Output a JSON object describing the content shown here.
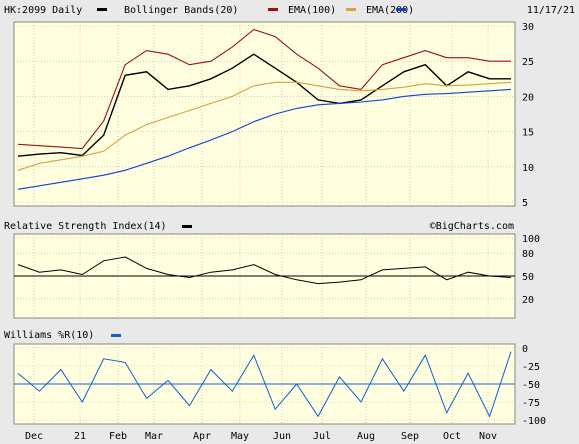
{
  "header": {
    "symbol": "HK:2099 Daily",
    "bollinger": "Bollinger Bands(20)",
    "ema100": "EMA(100)",
    "ema200": "EMA(200)",
    "date": "11/17/21"
  },
  "rsi_panel": {
    "title": "Relative Strength Index(14)"
  },
  "wr_panel": {
    "title": "Williams %R(10)"
  },
  "watermark": "©BigCharts.com",
  "colors": {
    "background": "#ffffe0",
    "price": "#000000",
    "bollinger": "#a01010",
    "ema100": "#d8a040",
    "ema200": "#1040d0",
    "rsi": "#000000",
    "williams": "#1060d0",
    "grid": "#b0b0b0"
  },
  "chart_data": [
    {
      "type": "line",
      "panel": "price",
      "title": "HK:2099 Daily",
      "ylim": [
        5,
        30
      ],
      "yticks": [
        5,
        10,
        15,
        20,
        25,
        30
      ],
      "xlabels": [
        "Dec",
        "21",
        "Feb",
        "Mar",
        "Apr",
        "May",
        "Jun",
        "Jul",
        "Aug",
        "Sep",
        "Oct",
        "Nov"
      ],
      "x": [
        "Dec 01",
        "Dec 15",
        "Jan 01",
        "Jan 15",
        "Feb 01",
        "Feb 15",
        "Mar 01",
        "Mar 15",
        "Apr 01",
        "Apr 15",
        "May 01",
        "May 15",
        "Jun 01",
        "Jun 15",
        "Jul 01",
        "Jul 15",
        "Aug 01",
        "Aug 15",
        "Sep 01",
        "Sep 15",
        "Oct 01",
        "Oct 15",
        "Nov 01",
        "Nov 17"
      ],
      "series": [
        {
          "name": "HK:2099 Daily",
          "values": [
            11.5,
            11.8,
            12.0,
            11.6,
            14.5,
            23.0,
            23.5,
            21.0,
            21.5,
            22.5,
            24.0,
            26.0,
            24.0,
            22.0,
            19.5,
            19.0,
            19.5,
            21.5,
            23.5,
            24.5,
            21.5,
            23.5,
            22.5,
            22.5
          ]
        },
        {
          "name": "Bollinger Bands(20)",
          "values": [
            13.2,
            13.0,
            12.8,
            12.6,
            16.5,
            24.5,
            26.5,
            26.0,
            24.5,
            25.0,
            27.0,
            29.5,
            28.5,
            26.0,
            24.0,
            21.5,
            21.0,
            24.5,
            25.5,
            26.5,
            25.5,
            25.5,
            25.0,
            25.0
          ]
        },
        {
          "name": "EMA(100)",
          "values": [
            9.5,
            10.5,
            11.0,
            11.5,
            12.2,
            14.5,
            16.0,
            17.0,
            18.0,
            19.0,
            20.0,
            21.5,
            22.0,
            22.0,
            21.5,
            21.0,
            20.8,
            21.0,
            21.3,
            21.8,
            21.5,
            21.6,
            21.8,
            22.0
          ]
        },
        {
          "name": "EMA(200)",
          "values": [
            6.8,
            7.3,
            7.8,
            8.3,
            8.8,
            9.5,
            10.5,
            11.5,
            12.7,
            13.8,
            15.0,
            16.4,
            17.5,
            18.3,
            18.8,
            19.0,
            19.2,
            19.5,
            20.0,
            20.3,
            20.4,
            20.6,
            20.8,
            21.0
          ]
        }
      ]
    },
    {
      "type": "line",
      "panel": "rsi",
      "title": "Relative Strength Index(14)",
      "ylim": [
        0,
        100
      ],
      "yticks": [
        20,
        50,
        80,
        100
      ],
      "series": [
        {
          "name": "Relative Strength Index(14)",
          "values": [
            65,
            55,
            58,
            52,
            70,
            75,
            60,
            52,
            48,
            55,
            58,
            65,
            52,
            45,
            40,
            42,
            45,
            58,
            60,
            62,
            45,
            55,
            50,
            48
          ]
        }
      ]
    },
    {
      "type": "line",
      "panel": "williams",
      "title": "Williams %R(10)",
      "ylim": [
        -100,
        0
      ],
      "yticks": [
        -100,
        -75,
        -50,
        -25,
        0
      ],
      "series": [
        {
          "name": "Williams %R(10)",
          "values": [
            -35,
            -60,
            -30,
            -75,
            -15,
            -20,
            -70,
            -45,
            -80,
            -30,
            -60,
            -10,
            -85,
            -50,
            -95,
            -40,
            -75,
            -15,
            -60,
            -10,
            -90,
            -35,
            -95,
            -5
          ]
        }
      ]
    }
  ]
}
